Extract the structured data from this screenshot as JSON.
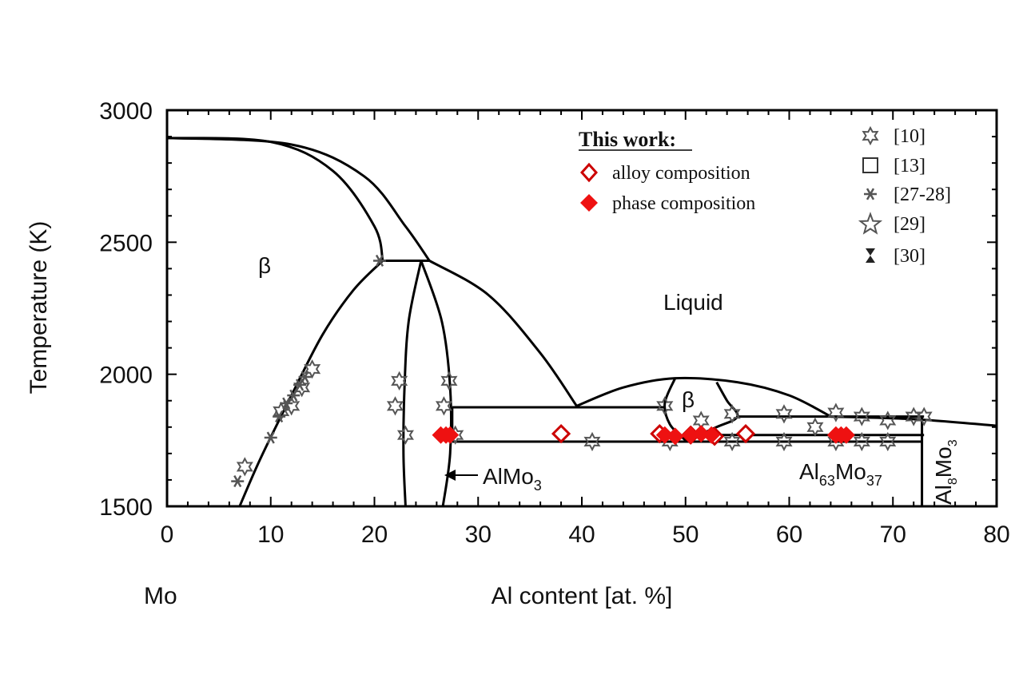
{
  "chart_data": {
    "type": "scatter",
    "xlabel": "Al content [at. %]",
    "ylabel": "Temperature  (K)",
    "xlim": [
      0,
      80
    ],
    "ylim": [
      1500,
      3000
    ],
    "x_ticks": [
      0,
      10,
      20,
      30,
      40,
      50,
      60,
      70,
      80
    ],
    "y_ticks": [
      1500,
      2000,
      2500,
      3000
    ],
    "x_tick_labels": [
      "0",
      "10",
      "20",
      "30",
      "40",
      "50",
      "60",
      "70",
      "80"
    ],
    "y_tick_labels": [
      "1500",
      "2000",
      "2500",
      "3000"
    ],
    "x_end_label": "Mo",
    "region_labels": {
      "beta_left": "β",
      "liquid": "Liquid",
      "beta_mid": "β",
      "almo3": "AlMo",
      "almo3_sub": "3",
      "al63_a": "Al",
      "al63_sub1": "63",
      "al63_b": "Mo",
      "al63_sub2": "37",
      "al8_a": "Al",
      "al8_sub1": "8",
      "al8_b": "Mo",
      "al8_sub2": "3"
    },
    "legend_left": {
      "title": "This work:",
      "entries": [
        {
          "label": "alloy composition",
          "marker": "open-diamond",
          "color": "#cc0000"
        },
        {
          "label": "phase composition",
          "marker": "filled-diamond",
          "color": "#ee1111"
        }
      ]
    },
    "legend_right": {
      "entries": [
        {
          "label": "[10]",
          "marker": "open-hexagram"
        },
        {
          "label": "[13]",
          "marker": "open-square"
        },
        {
          "label": "[27-28]",
          "marker": "asterisk"
        },
        {
          "label": "[29]",
          "marker": "open-star"
        },
        {
          "label": "[30]",
          "marker": "hourglass"
        }
      ]
    },
    "phase_boundaries": [
      {
        "name": "liquidus-beta-left",
        "points": [
          [
            0,
            2895
          ],
          [
            10,
            2880
          ],
          [
            16,
            2770
          ],
          [
            20,
            2560
          ],
          [
            20.8,
            2430
          ]
        ]
      },
      {
        "name": "solidus-beta-left",
        "points": [
          [
            0,
            2895
          ],
          [
            12,
            2870
          ],
          [
            19,
            2750
          ],
          [
            23,
            2560
          ],
          [
            25.3,
            2430
          ]
        ]
      },
      {
        "name": "peritectic-2430",
        "points": [
          [
            20.8,
            2430
          ],
          [
            25.3,
            2430
          ]
        ]
      },
      {
        "name": "beta-solvus-left",
        "points": [
          [
            7,
            1500
          ],
          [
            9,
            1680
          ],
          [
            12,
            1920
          ],
          [
            15,
            2150
          ],
          [
            18,
            2320
          ],
          [
            20.8,
            2430
          ]
        ]
      },
      {
        "name": "almo3-left",
        "points": [
          [
            24.5,
            2430
          ],
          [
            23.3,
            2200
          ],
          [
            22.9,
            1950
          ],
          [
            22.8,
            1700
          ],
          [
            23,
            1500
          ]
        ]
      },
      {
        "name": "almo3-right",
        "points": [
          [
            24.5,
            2430
          ],
          [
            26.5,
            2200
          ],
          [
            27.3,
            1950
          ],
          [
            27.3,
            1700
          ],
          [
            26.6,
            1500
          ]
        ]
      },
      {
        "name": "liquidus-mid",
        "points": [
          [
            25.3,
            2430
          ],
          [
            31,
            2300
          ],
          [
            36,
            2080
          ],
          [
            39.5,
            1880
          ]
        ]
      },
      {
        "name": "liquidus-hump",
        "points": [
          [
            39.5,
            1880
          ],
          [
            44,
            1950
          ],
          [
            49,
            1985
          ],
          [
            55,
            1970
          ],
          [
            60,
            1920
          ],
          [
            64,
            1840
          ]
        ]
      },
      {
        "name": "liquidus-right",
        "points": [
          [
            64,
            1840
          ],
          [
            72,
            1830
          ],
          [
            80,
            1805
          ]
        ]
      },
      {
        "name": "eutectic-1880",
        "points": [
          [
            27.5,
            1875
          ],
          [
            48,
            1875
          ]
        ]
      },
      {
        "name": "beta-mid-left",
        "points": [
          [
            49,
            1985
          ],
          [
            48,
            1890
          ],
          [
            48.5,
            1810
          ],
          [
            50,
            1750
          ]
        ]
      },
      {
        "name": "beta-mid-right",
        "points": [
          [
            53,
            1970
          ],
          [
            54,
            1900
          ],
          [
            55,
            1840
          ],
          [
            53,
            1800
          ],
          [
            50,
            1750
          ]
        ]
      },
      {
        "name": "line-1840",
        "points": [
          [
            55,
            1840
          ],
          [
            73,
            1840
          ]
        ]
      },
      {
        "name": "line-1770",
        "points": [
          [
            50,
            1770
          ],
          [
            73,
            1770
          ]
        ]
      },
      {
        "name": "line-1745",
        "points": [
          [
            27.5,
            1745
          ],
          [
            72.8,
            1745
          ]
        ]
      },
      {
        "name": "al63-left",
        "points": [
          [
            27.5,
            1875
          ],
          [
            27.5,
            1745
          ]
        ]
      },
      {
        "name": "al8mo3-vertical",
        "points": [
          [
            72.8,
            1840
          ],
          [
            72.8,
            1500
          ]
        ]
      }
    ],
    "series": [
      {
        "name": "[10]",
        "marker": "open-hexagram",
        "color": "#555555",
        "points": [
          [
            7.5,
            1650
          ],
          [
            11,
            1860
          ],
          [
            12,
            1880
          ],
          [
            13,
            1950
          ],
          [
            14,
            2020
          ],
          [
            22.4,
            1975
          ],
          [
            22,
            1880
          ],
          [
            23,
            1770
          ],
          [
            27.2,
            1975
          ],
          [
            26.7,
            1880
          ],
          [
            27.8,
            1770
          ],
          [
            41,
            1745
          ],
          [
            48,
            1880
          ],
          [
            48.5,
            1745
          ],
          [
            51.5,
            1825
          ],
          [
            54.5,
            1850
          ],
          [
            54.5,
            1745
          ],
          [
            59.5,
            1850
          ],
          [
            59.5,
            1745
          ],
          [
            62.5,
            1800
          ],
          [
            64.5,
            1855
          ],
          [
            64.5,
            1745
          ],
          [
            67,
            1840
          ],
          [
            67,
            1745
          ],
          [
            69.5,
            1825
          ],
          [
            69.5,
            1745
          ],
          [
            72,
            1840
          ],
          [
            73,
            1840
          ]
        ]
      },
      {
        "name": "[27-28]",
        "marker": "asterisk",
        "color": "#555555",
        "points": [
          [
            6.8,
            1595
          ],
          [
            10,
            1760
          ],
          [
            10.8,
            1840
          ],
          [
            11.5,
            1890
          ],
          [
            12.2,
            1920
          ],
          [
            12.8,
            1960
          ],
          [
            13.3,
            1990
          ],
          [
            20.5,
            2430
          ]
        ]
      },
      {
        "name": "alloy composition",
        "marker": "open-diamond",
        "color": "#cc0000",
        "points": [
          [
            38,
            1775
          ],
          [
            47.5,
            1775
          ],
          [
            50.5,
            1770
          ],
          [
            52.8,
            1765
          ],
          [
            55.8,
            1775
          ]
        ]
      },
      {
        "name": "phase composition",
        "marker": "filled-diamond",
        "color": "#ee1111",
        "points": [
          [
            26.4,
            1770
          ],
          [
            26.9,
            1770
          ],
          [
            27.3,
            1770
          ],
          [
            48,
            1770
          ],
          [
            49,
            1765
          ],
          [
            50.5,
            1770
          ],
          [
            51.5,
            1775
          ],
          [
            52.5,
            1770
          ],
          [
            64.5,
            1770
          ],
          [
            65,
            1770
          ],
          [
            65.5,
            1770
          ]
        ]
      }
    ]
  }
}
